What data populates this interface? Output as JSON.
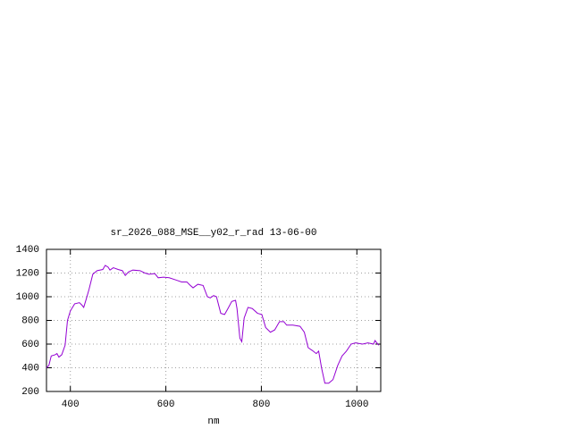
{
  "chart_data": {
    "type": "line",
    "title": "sr_2026_088_MSE__y02_r_rad 13-06-00",
    "x_label": "nm",
    "xlim": [
      350,
      1050
    ],
    "xticks": [
      400,
      600,
      800,
      1000
    ],
    "ylim": [
      200,
      1400
    ],
    "yticks": [
      200,
      400,
      600,
      800,
      1000,
      1200,
      1400
    ],
    "grid": true,
    "x": [
      350,
      355,
      360,
      368,
      372,
      376,
      382,
      389,
      394,
      400,
      409,
      419,
      424,
      428,
      434,
      439,
      447,
      456,
      468,
      473,
      479,
      483,
      490,
      500,
      509,
      515,
      522,
      531,
      546,
      556,
      565,
      577,
      584,
      595,
      607,
      622,
      633,
      644,
      650,
      657,
      667,
      678,
      687,
      693,
      700,
      706,
      715,
      723,
      730,
      738,
      746,
      749,
      755,
      759,
      764,
      772,
      781,
      792,
      801,
      809,
      819,
      828,
      838,
      847,
      853,
      866,
      881,
      890,
      898,
      907,
      915,
      920,
      926,
      933,
      941,
      950,
      960,
      969,
      978,
      988,
      997,
      1012,
      1023,
      1035,
      1038,
      1046
    ],
    "series": [
      {
        "color": "#9400d3",
        "values": [
          400,
          420,
          500,
          510,
          520,
          490,
          510,
          590,
          800,
          880,
          940,
          950,
          930,
          910,
          990,
          1060,
          1190,
          1220,
          1230,
          1265,
          1250,
          1225,
          1245,
          1230,
          1220,
          1180,
          1210,
          1225,
          1220,
          1200,
          1190,
          1195,
          1160,
          1165,
          1160,
          1140,
          1125,
          1125,
          1100,
          1075,
          1105,
          1095,
          1000,
          990,
          1010,
          1000,
          860,
          850,
          900,
          960,
          970,
          900,
          650,
          620,
          820,
          910,
          900,
          860,
          850,
          740,
          700,
          720,
          790,
          790,
          760,
          760,
          750,
          700,
          570,
          545,
          520,
          540,
          400,
          270,
          270,
          300,
          420,
          500,
          540,
          600,
          610,
          600,
          610,
          600,
          630,
          590
        ]
      }
    ]
  }
}
